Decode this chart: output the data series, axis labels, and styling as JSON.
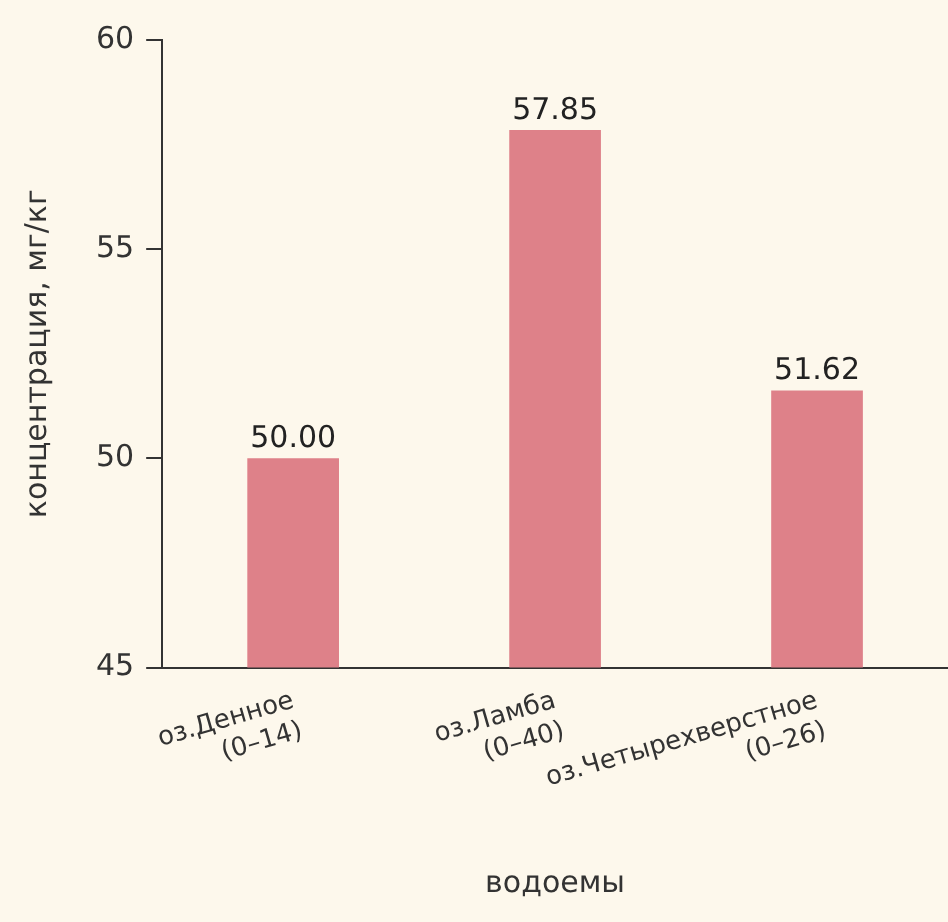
{
  "chart_data": {
    "type": "bar",
    "xlabel": "водоемы",
    "ylabel": "концентрация, мг/кг",
    "categories": [
      "оз.Денное\n(0–14)",
      "оз.Ламба\n(0–40)",
      "оз.Четырехверстное\n(0–26)"
    ],
    "values": [
      50.0,
      57.85,
      51.62
    ],
    "value_labels": [
      "50.00",
      "57.85",
      "51.62"
    ],
    "color": "#de8189",
    "ylim": [
      45,
      60
    ],
    "yticks": [
      45,
      50,
      55,
      60
    ],
    "grid": false,
    "legend": false
  }
}
